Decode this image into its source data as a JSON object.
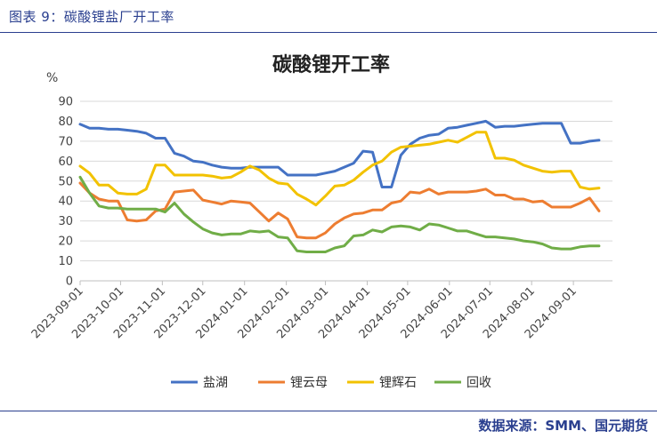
{
  "caption": "图表 9：碳酸锂盐厂开工率",
  "source": "数据来源：SMM、国元期货",
  "chart_data": {
    "type": "line",
    "title": "碳酸锂开工率",
    "ylabel": "%",
    "ylim": [
      0,
      90
    ],
    "yticks": [
      0,
      10,
      20,
      30,
      40,
      50,
      60,
      70,
      80,
      90
    ],
    "xlim": [
      "2023-09-01",
      "2024-09-30"
    ],
    "xticks": [
      "2023-09-01",
      "2023-10-01",
      "2023-11-01",
      "2023-12-01",
      "2024-01-01",
      "2024-02-01",
      "2024-03-01",
      "2024-04-01",
      "2024-05-01",
      "2024-06-01",
      "2024-07-01",
      "2024-08-01",
      "2024-09-01"
    ],
    "legend_position": "bottom",
    "x": [
      "2023-09-01",
      "2023-09-08",
      "2023-09-15",
      "2023-09-22",
      "2023-09-29",
      "2023-10-06",
      "2023-10-13",
      "2023-10-20",
      "2023-10-27",
      "2023-11-03",
      "2023-11-10",
      "2023-11-17",
      "2023-11-24",
      "2023-12-01",
      "2023-12-08",
      "2023-12-15",
      "2023-12-22",
      "2023-12-29",
      "2024-01-05",
      "2024-01-12",
      "2024-01-19",
      "2024-01-26",
      "2024-02-02",
      "2024-02-09",
      "2024-02-16",
      "2024-02-23",
      "2024-03-01",
      "2024-03-08",
      "2024-03-15",
      "2024-03-22",
      "2024-03-29",
      "2024-04-05",
      "2024-04-12",
      "2024-04-19",
      "2024-04-26",
      "2024-05-03",
      "2024-05-10",
      "2024-05-17",
      "2024-05-24",
      "2024-05-31",
      "2024-06-07",
      "2024-06-14",
      "2024-06-21",
      "2024-06-28",
      "2024-07-05",
      "2024-07-12",
      "2024-07-19",
      "2024-07-26",
      "2024-08-02",
      "2024-08-09",
      "2024-08-16",
      "2024-08-23",
      "2024-08-30",
      "2024-09-06",
      "2024-09-13",
      "2024-09-20"
    ],
    "series": [
      {
        "name": "盐湖",
        "color": "#4472c4",
        "values": [
          78.5,
          76.5,
          76.5,
          76,
          76,
          75.5,
          75,
          74,
          71.5,
          71.5,
          64,
          62.5,
          60,
          59.5,
          58,
          57,
          56.5,
          56.5,
          57,
          57,
          57,
          57,
          53,
          53,
          53,
          53,
          54,
          55,
          57,
          59,
          65,
          64.5,
          47,
          47,
          63,
          68.5,
          71.5,
          73,
          73.5,
          76.5,
          77,
          78,
          79,
          80,
          77,
          77.5,
          77.5,
          78,
          78.5,
          79,
          79,
          79,
          69,
          69,
          70,
          70.5
        ]
      },
      {
        "name": "锂云母",
        "color": "#ed7d31",
        "values": [
          49,
          44,
          41,
          40,
          40,
          30.5,
          30,
          30.5,
          35,
          36,
          44.5,
          45,
          45.5,
          40.5,
          39.5,
          38.5,
          40,
          39.5,
          39,
          34.5,
          30,
          34,
          31,
          22,
          21.5,
          21.5,
          24,
          28.5,
          31.5,
          33.5,
          34,
          35.5,
          35.5,
          39,
          40,
          44.5,
          44,
          46,
          43.5,
          44.5,
          44.5,
          44.5,
          45,
          46,
          43,
          43,
          41,
          41,
          39.5,
          40,
          37,
          37,
          37,
          39,
          41.5,
          35
        ]
      },
      {
        "name": "锂辉石",
        "color": "#f2c200",
        "values": [
          57.5,
          54,
          48,
          48,
          44,
          43.5,
          43.5,
          46,
          58,
          58,
          53,
          53,
          53,
          53,
          52.5,
          51.5,
          52,
          54.5,
          57.5,
          55.5,
          51.5,
          49,
          48.5,
          43.5,
          41,
          38,
          42.5,
          47.5,
          48,
          50.5,
          54.5,
          58,
          60,
          64.5,
          67,
          67.5,
          68,
          68.5,
          69.5,
          70.5,
          69.5,
          72,
          74.5,
          74.5,
          61.5,
          61.5,
          60.5,
          58,
          56.5,
          55,
          54.5,
          55,
          55,
          47,
          46,
          46.5
        ]
      },
      {
        "name": "回收",
        "color": "#70ad47",
        "values": [
          52,
          44,
          37.5,
          36.5,
          36.5,
          36,
          36,
          36,
          36,
          34.5,
          39,
          33.5,
          29.5,
          26,
          24,
          23,
          23.5,
          23.5,
          25,
          24.5,
          25,
          22,
          21.5,
          15,
          14.5,
          14.5,
          14.5,
          16.5,
          17.5,
          22.5,
          23,
          25.5,
          24.5,
          27,
          27.5,
          27,
          25.5,
          28.5,
          28,
          26.5,
          25,
          25,
          23.5,
          22,
          22,
          21.5,
          21,
          20,
          19.5,
          18.5,
          16.5,
          16,
          16,
          17,
          17.5,
          17.5
        ]
      }
    ]
  }
}
